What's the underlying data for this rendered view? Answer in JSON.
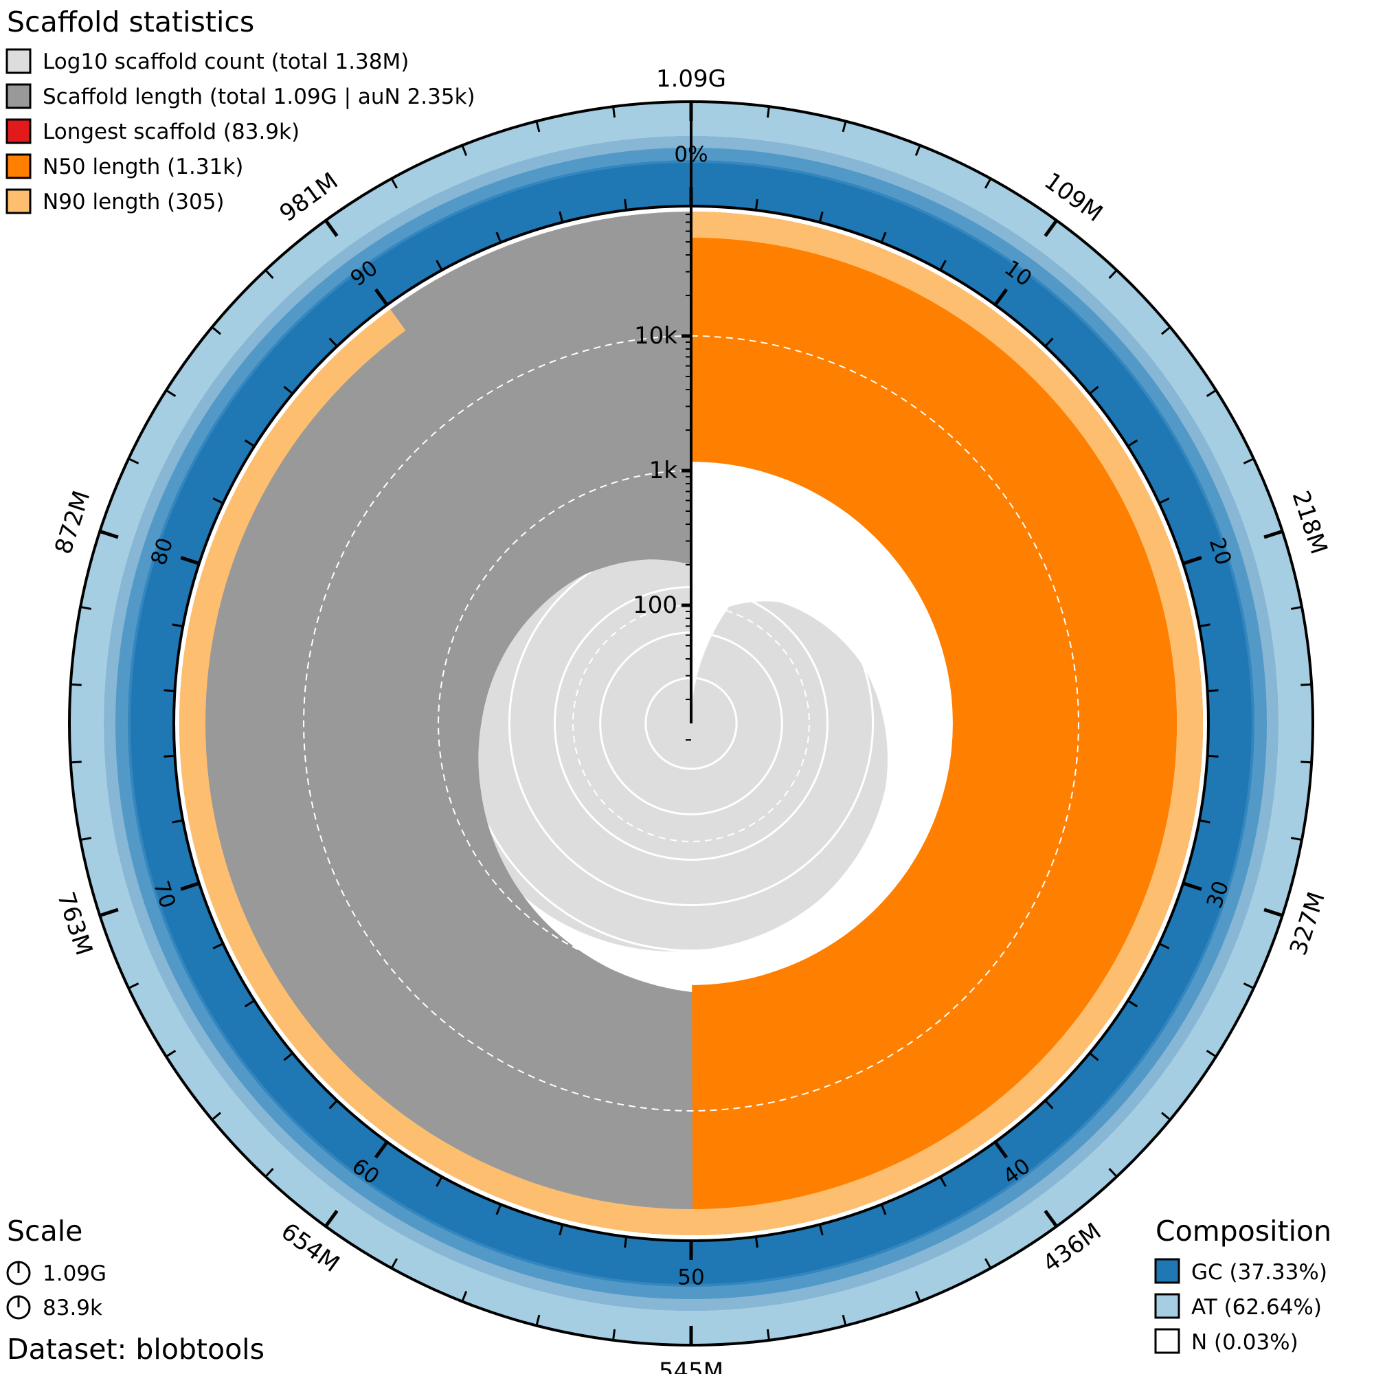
{
  "header": {
    "title": "Scaffold statistics"
  },
  "legend": [
    {
      "color": "#dddddd",
      "label": "Log10 scaffold count (total 1.38M)"
    },
    {
      "color": "#999999",
      "label": "Scaffold length (total 1.09G | auN 2.35k)"
    },
    {
      "color": "#e31a1c",
      "label": "Longest scaffold (83.9k)"
    },
    {
      "color": "#ff7f00",
      "label": "N50 length (1.31k)"
    },
    {
      "color": "#fdbf6f",
      "label": "N90 length (305)"
    }
  ],
  "scale": {
    "title": "Scale",
    "items": [
      {
        "label": "1.09G"
      },
      {
        "label": "83.9k"
      }
    ]
  },
  "dataset_label": "Dataset: blobtools",
  "composition": {
    "title": "Composition",
    "items": [
      {
        "color": "#1f78b4",
        "label": "GC (37.33%)"
      },
      {
        "color": "#a6cee3",
        "label": "AT (62.64%)"
      },
      {
        "color": "#ffffff",
        "label": "N (0.03%)"
      }
    ]
  },
  "chart_data": {
    "type": "snail",
    "total_length_label": "1.09G",
    "outer_ticks": [
      "109M",
      "218M",
      "327M",
      "436M",
      "545M",
      "654M",
      "763M",
      "872M",
      "981M"
    ],
    "percent_ticks": [
      "10",
      "20",
      "30",
      "40",
      "50",
      "60",
      "70",
      "80",
      "90"
    ],
    "zero_percent_label": "0%",
    "length_axis_ticks": [
      {
        "label": "100",
        "value": 100
      },
      {
        "label": "1k",
        "value": 1000
      },
      {
        "label": "10k",
        "value": 10000
      }
    ],
    "length_axis_max": 83900,
    "longest_scaffold": 83900,
    "n50_length": 1310,
    "n50_percent": 50,
    "n90_length": 305,
    "n90_percent": 90,
    "scaffold_length_curve": [
      {
        "percent": 0,
        "length": 83900
      },
      {
        "percent": 0.3,
        "length": 30000
      },
      {
        "percent": 1,
        "length": 11000
      },
      {
        "percent": 3,
        "length": 9000
      },
      {
        "percent": 6,
        "length": 7200
      },
      {
        "percent": 10,
        "length": 5600
      },
      {
        "percent": 15,
        "length": 4300
      },
      {
        "percent": 20,
        "length": 3500
      },
      {
        "percent": 25,
        "length": 2900
      },
      {
        "percent": 30,
        "length": 2400
      },
      {
        "percent": 35,
        "length": 2000
      },
      {
        "percent": 40,
        "length": 1700
      },
      {
        "percent": 45,
        "length": 1480
      },
      {
        "percent": 50,
        "length": 1310
      },
      {
        "percent": 55,
        "length": 1100
      },
      {
        "percent": 60,
        "length": 900
      },
      {
        "percent": 65,
        "length": 720
      },
      {
        "percent": 70,
        "length": 580
      },
      {
        "percent": 75,
        "length": 480
      },
      {
        "percent": 80,
        "length": 410
      },
      {
        "percent": 85,
        "length": 350
      },
      {
        "percent": 90,
        "length": 305
      },
      {
        "percent": 92,
        "length": 280
      },
      {
        "percent": 96,
        "length": 240
      },
      {
        "percent": 100,
        "length": 200
      }
    ],
    "log10_count_curve": [
      {
        "percent": 0,
        "log10_count": 0
      },
      {
        "percent": 5,
        "log10_count": 2.7
      },
      {
        "percent": 10,
        "log10_count": 3.3
      },
      {
        "percent": 20,
        "log10_count": 4.0
      },
      {
        "percent": 30,
        "log10_count": 4.5
      },
      {
        "percent": 40,
        "log10_count": 4.8
      },
      {
        "percent": 50,
        "log10_count": 5.0
      },
      {
        "percent": 60,
        "log10_count": 5.25
      },
      {
        "percent": 70,
        "log10_count": 5.45
      },
      {
        "percent": 80,
        "log10_count": 5.62
      },
      {
        "percent": 90,
        "log10_count": 5.75
      },
      {
        "percent": 100,
        "log10_count": 6.14
      }
    ],
    "gc_percent": 37.33,
    "at_percent": 62.64,
    "n_percent": 0.03
  }
}
